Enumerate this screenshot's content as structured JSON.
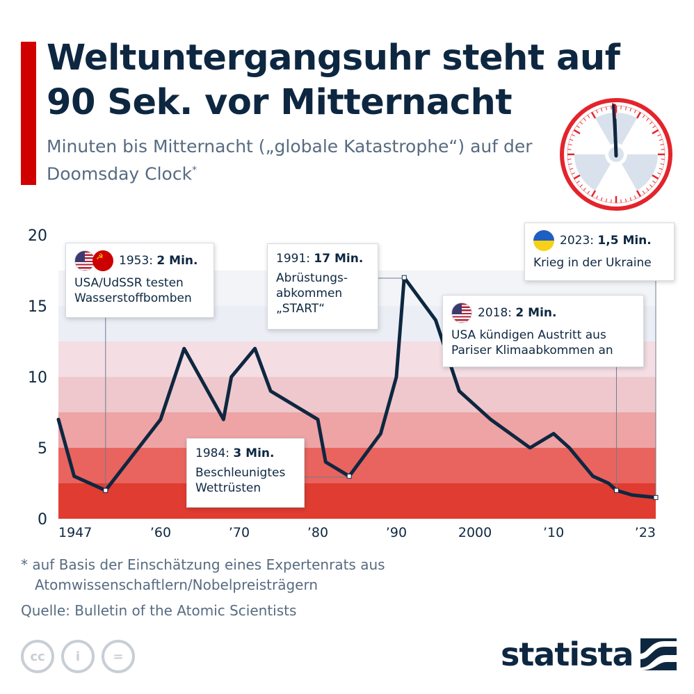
{
  "header": {
    "title": "Weltuntergangsuhr steht auf 90 Sek. vor Mitternacht",
    "subtitle": "Minuten bis Mitternacht („globale Katastrophe“) auf der Doomsday Clock",
    "subtitle_mark": "*"
  },
  "colors": {
    "accent": "#d10000",
    "line": "#0e2741",
    "text": "#0e2741",
    "muted": "#576b81"
  },
  "chart_data": {
    "type": "line",
    "title": "",
    "xlabel": "",
    "ylabel": "",
    "xlim": [
      1947,
      2023
    ],
    "ylim": [
      0,
      20
    ],
    "yticks": [
      0,
      5,
      10,
      15,
      20
    ],
    "xticks": [
      {
        "value": 1947,
        "label": "1947"
      },
      {
        "value": 1960,
        "label": "’60"
      },
      {
        "value": 1970,
        "label": "’70"
      },
      {
        "value": 1980,
        "label": "’80"
      },
      {
        "value": 1990,
        "label": "’90"
      },
      {
        "value": 2000,
        "label": "2000"
      },
      {
        "value": 2010,
        "label": "’10"
      },
      {
        "value": 2023,
        "label": "’23"
      }
    ],
    "grid": false,
    "background_bands": [
      {
        "from": 0,
        "to": 2.5,
        "color": "#e03c31"
      },
      {
        "from": 2.5,
        "to": 5,
        "color": "#e9645e"
      },
      {
        "from": 5,
        "to": 7.5,
        "color": "#eea3a5"
      },
      {
        "from": 7.5,
        "to": 10,
        "color": "#eec8cd"
      },
      {
        "from": 10,
        "to": 12.5,
        "color": "#f4dde3"
      },
      {
        "from": 12.5,
        "to": 15,
        "color": "#ebeef5"
      },
      {
        "from": 15,
        "to": 17.5,
        "color": "#f3f4f8"
      }
    ],
    "series": [
      {
        "x": [
          1947,
          1949,
          1953,
          1960,
          1963,
          1968,
          1969,
          1972,
          1974,
          1980,
          1981,
          1984,
          1988,
          1990,
          1991,
          1995,
          1998,
          2002,
          2007,
          2010,
          2012,
          2015,
          2017,
          2018,
          2020,
          2023
        ],
        "values": [
          7,
          3,
          2,
          7,
          12,
          7,
          10,
          12,
          9,
          7,
          4,
          3,
          6,
          10,
          17,
          14,
          9,
          7,
          5,
          6,
          5,
          3,
          2.5,
          2,
          1.67,
          1.5
        ]
      }
    ],
    "annotations": [
      {
        "x": 1953,
        "y": 2,
        "year": "1953:",
        "value": "2 Min.",
        "lines": [
          "USA/UdSSR testen",
          "Wasserstoffbomben"
        ],
        "flags": [
          "us",
          "ussr"
        ]
      },
      {
        "x": 1984,
        "y": 3,
        "year": "1984:",
        "value": "3 Min.",
        "lines": [
          "Beschleunigtes",
          "Wettrüsten"
        ],
        "flags": []
      },
      {
        "x": 1991,
        "y": 17,
        "year": "1991:",
        "value": "17 Min.",
        "lines": [
          "Abrüstungs-",
          "abkommen",
          "„START“"
        ],
        "flags": []
      },
      {
        "x": 2018,
        "y": 2,
        "year": "2018:",
        "value": "2 Min.",
        "lines": [
          "USA kündigen Austritt aus",
          "Pariser Klimaabkommen an"
        ],
        "flags": [
          "us"
        ]
      },
      {
        "x": 2023,
        "y": 1.5,
        "year": "2023:",
        "value": "1,5 Min.",
        "lines": [
          "Krieg in der Ukraine"
        ],
        "flags": [
          "ua"
        ]
      }
    ]
  },
  "footer": {
    "footnote_line1": "* auf Basis der Einschätzung eines Expertenrats aus",
    "footnote_line2": "Atomwissenschaftlern/Nobelpreisträgern",
    "source": "Quelle: Bulletin of the Atomic Scientists",
    "brand": "statista",
    "license_icons": [
      "cc",
      "i",
      "="
    ]
  },
  "icons": {
    "clock": "doomsday-clock-icon",
    "brand_logo": "statista-logo-icon"
  }
}
